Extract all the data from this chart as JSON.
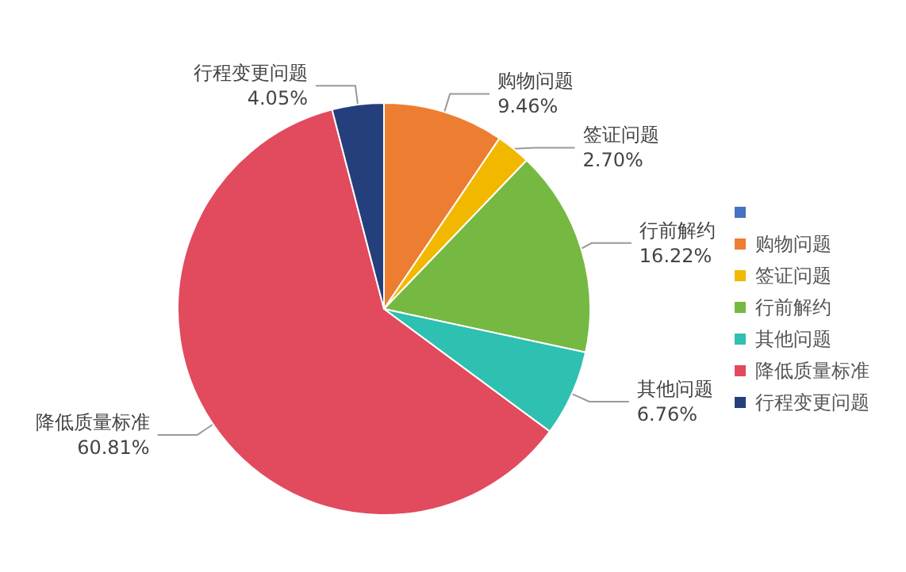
{
  "chart_data": {
    "type": "pie",
    "categories": [
      null,
      "购物问题",
      "签证问题",
      "行前解约",
      "其他问题",
      "降低质量标准",
      "行程变更问题"
    ],
    "values": [
      0,
      9.46,
      2.7,
      16.22,
      6.76,
      60.81,
      4.05
    ],
    "value_labels": [
      null,
      "9.46%",
      "2.70%",
      "16.22%",
      "6.76%",
      "60.81%",
      "4.05%"
    ],
    "colors": [
      "#4472c4",
      "#ed7d31",
      "#f2b800",
      "#76b942",
      "#2ec0b0",
      "#e24a5e",
      "#243f7c"
    ],
    "legend": "right"
  }
}
